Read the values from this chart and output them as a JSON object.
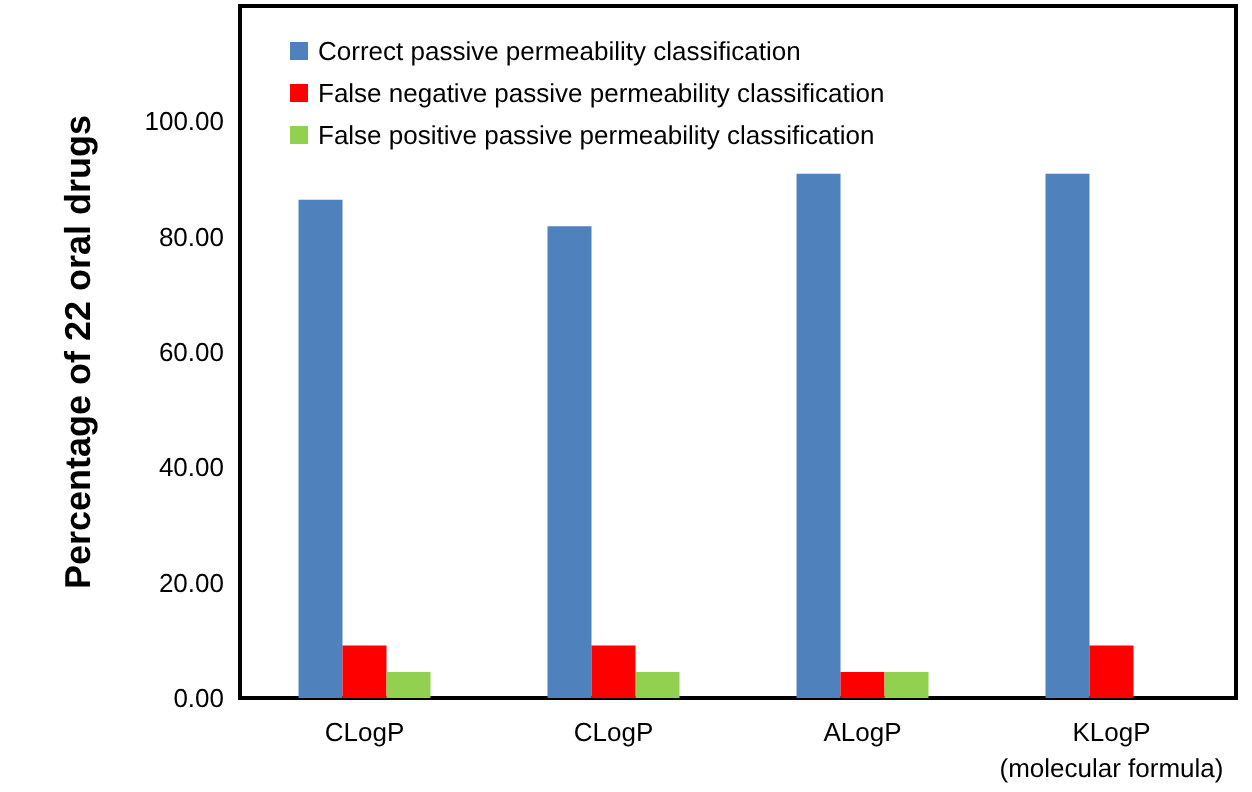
{
  "chart_data": {
    "type": "bar",
    "ylabel": "Percentage of 22 oral drugs",
    "categories": [
      "CLogP",
      "CLogP",
      "ALogP",
      "KLogP\n(molecular formula)"
    ],
    "series": [
      {
        "name": "Correct passive permeability classification",
        "color": "#4f81bd",
        "values": [
          86.4,
          81.8,
          90.9,
          90.9
        ]
      },
      {
        "name": "False negative passive permeability classification",
        "color": "#ff0000",
        "values": [
          9.1,
          9.1,
          4.5,
          9.1
        ]
      },
      {
        "name": "False positive passive permeability classification",
        "color": "#92d050",
        "values": [
          4.5,
          4.5,
          4.5,
          0
        ]
      }
    ],
    "ylim": [
      0,
      120
    ],
    "yticks": [
      {
        "value": 0,
        "label": "0.00"
      },
      {
        "value": 20,
        "label": "20.00"
      },
      {
        "value": 40,
        "label": "40.00"
      },
      {
        "value": 60,
        "label": "60.00"
      },
      {
        "value": 80,
        "label": "80.00"
      },
      {
        "value": 100,
        "label": "100.00"
      }
    ],
    "grid": false,
    "legend": "top left"
  }
}
